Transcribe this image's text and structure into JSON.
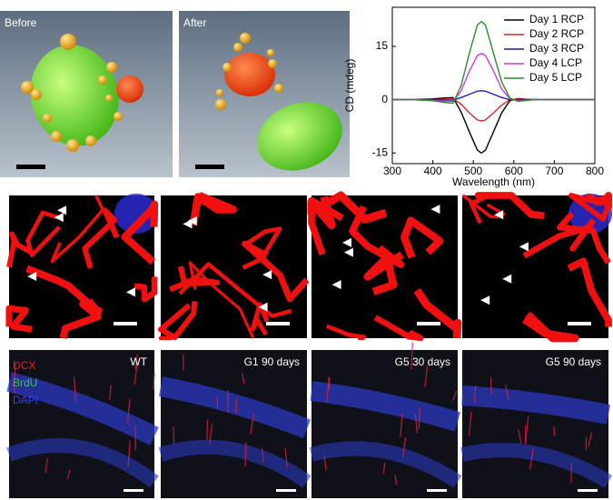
{
  "chart_data": {
    "type": "line",
    "xlabel": "Wavelength (nm)",
    "ylabel": "CD (mdeg)",
    "x": [
      300,
      350,
      400,
      430,
      450,
      470,
      490,
      510,
      520,
      530,
      550,
      570,
      590,
      610,
      650,
      700,
      750,
      800
    ],
    "series": [
      {
        "name": "Day 1 RCP",
        "color": "#000000",
        "values": [
          0,
          0,
          0.2,
          0.5,
          0.6,
          -3.5,
          -9,
          -14.2,
          -15,
          -14.2,
          -9,
          -3.7,
          -0.3,
          0.3,
          0,
          0,
          0,
          0
        ]
      },
      {
        "name": "Day 2 RCP",
        "color": "#d42a2a",
        "values": [
          0,
          0,
          0,
          0.2,
          0.3,
          -1.3,
          -3.7,
          -5.7,
          -6,
          -5.7,
          -3.7,
          -1.5,
          0,
          0.2,
          0,
          0,
          0,
          0
        ]
      },
      {
        "name": "Day 3 RCP",
        "color": "#1c1cb8",
        "values": [
          0,
          0,
          0,
          -0.1,
          -0.1,
          0.6,
          1.5,
          2.4,
          2.5,
          2.4,
          1.5,
          0.6,
          0,
          0,
          0,
          0,
          0,
          0
        ]
      },
      {
        "name": "Day 4 LCP",
        "color": "#d03ad0",
        "values": [
          0,
          0,
          -0.2,
          -0.5,
          -0.5,
          2.5,
          8,
          12.4,
          13,
          12.4,
          8,
          3,
          0.3,
          -0.3,
          0,
          0,
          0,
          0
        ]
      },
      {
        "name": "Day 5 LCP",
        "color": "#2e8b2e",
        "values": [
          0,
          0,
          -0.3,
          -0.8,
          -1,
          4,
          13,
          21,
          22,
          21,
          13,
          5,
          0.5,
          -0.5,
          0,
          0,
          0,
          0
        ]
      }
    ],
    "xlim": [
      300,
      800
    ],
    "xticks": [
      300,
      400,
      500,
      600,
      700,
      800
    ],
    "ylim": [
      -18,
      26
    ],
    "yticks": [
      -15,
      0,
      15
    ],
    "legend": "upper right"
  },
  "render_panels": {
    "labels": [
      "Before",
      "After"
    ]
  },
  "micrographs": {
    "labels": [
      "WT",
      "G1 90 days",
      "G5 30 days",
      "G5 90 days"
    ],
    "stains": [
      {
        "text": "DCX",
        "color": "#e02020"
      },
      {
        "text": "BrdU",
        "color": "#30d030"
      },
      {
        "text": "DAPI",
        "color": "#3040ff"
      }
    ]
  }
}
